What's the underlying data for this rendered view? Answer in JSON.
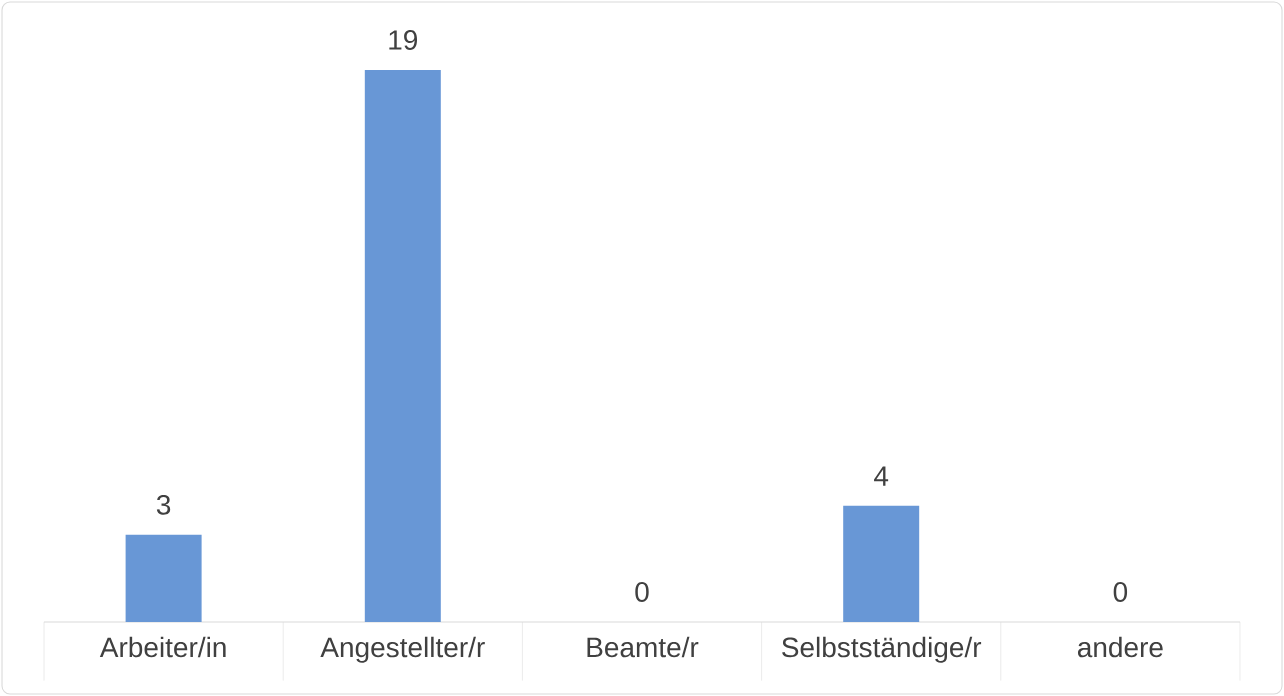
{
  "chart_data": {
    "type": "bar",
    "categories": [
      "Arbeiter/in",
      "Angestellter/r",
      "Beamte/r",
      "Selbstständige/r",
      "andere"
    ],
    "values": [
      3,
      19,
      0,
      4,
      0
    ],
    "color": "#6897d6",
    "data_labels": true
  }
}
